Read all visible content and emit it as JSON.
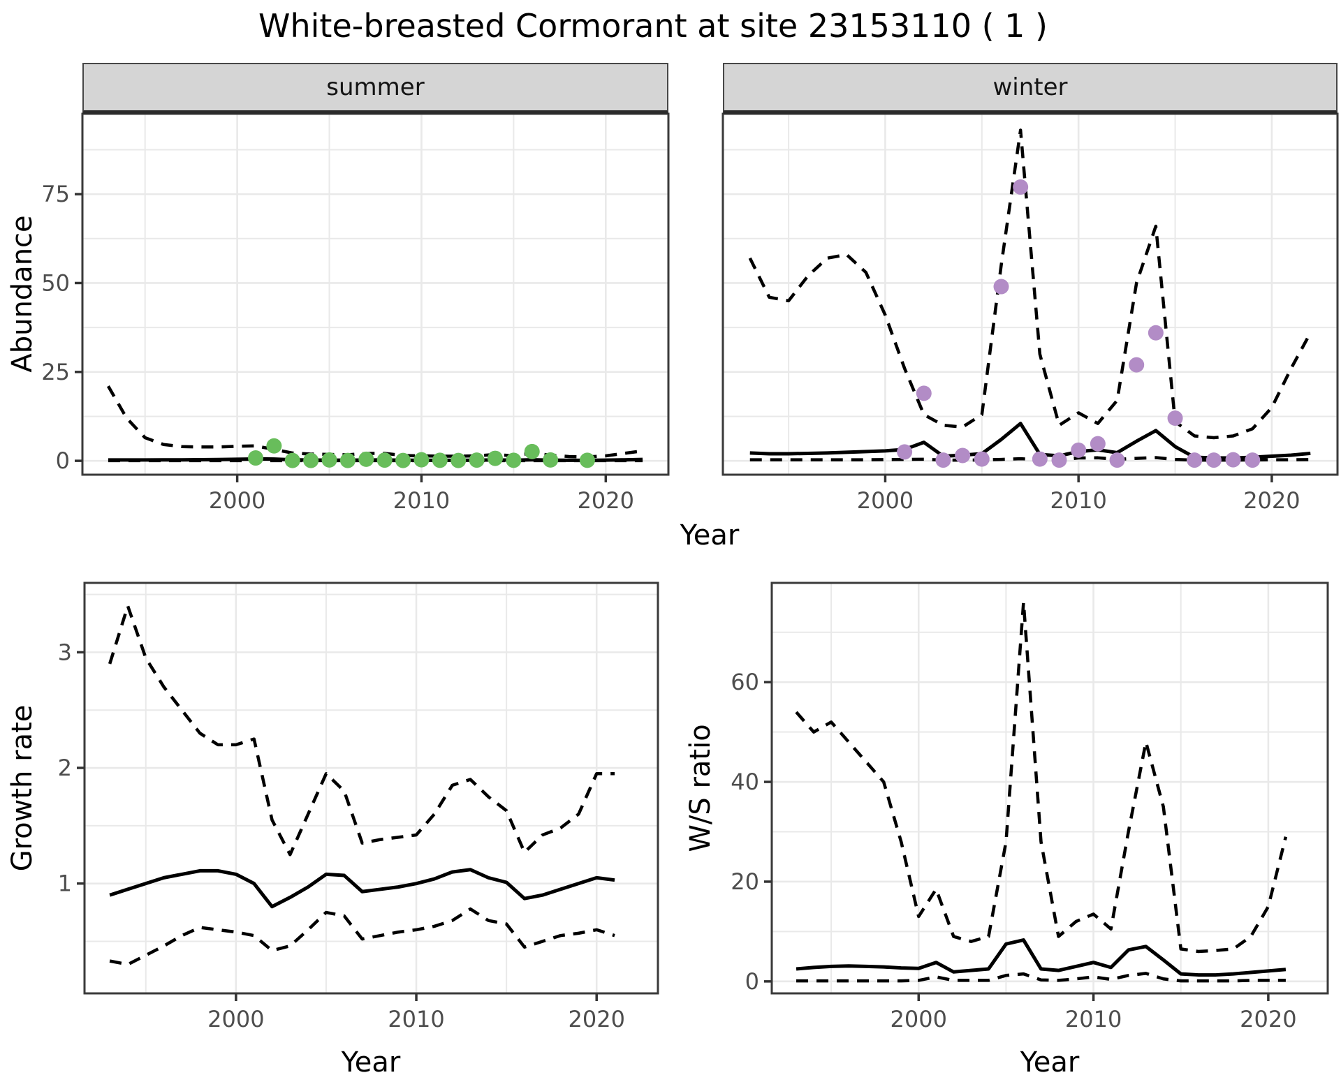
{
  "labels": {
    "title": "White-breasted Cormorant at site 23153110 ( 1 )",
    "facet_summer": "summer",
    "facet_winter": "winter",
    "y_top": "Abundance",
    "x_top": "Year",
    "y_bottom_left": "Growth rate",
    "x_bottom_left": "Year",
    "y_bottom_right": "W/S ratio",
    "x_bottom_right": "Year"
  },
  "colors": {
    "summer_point": "#68bd5b",
    "winter_point": "#b28cc6",
    "line": "#000000",
    "strip_bg": "#d5d5d5",
    "grid": "#e9e9e9",
    "tick_text": "#4d4d4d",
    "panel_border": "#3a3a3a"
  },
  "chart_data": [
    {
      "type": "line",
      "facet_label": "summer",
      "xlabel": "Year",
      "ylabel": "Abundance",
      "legend": "none",
      "grid": true,
      "x": [
        1993,
        1994,
        1995,
        1996,
        1997,
        1998,
        1999,
        2000,
        2001,
        2002,
        2003,
        2004,
        2005,
        2006,
        2007,
        2008,
        2009,
        2010,
        2011,
        2012,
        2013,
        2014,
        2015,
        2016,
        2017,
        2018,
        2019,
        2020,
        2021,
        2022
      ],
      "series": [
        {
          "name": "median_fit",
          "style": "solid",
          "values": [
            0.25,
            0.25,
            0.25,
            0.26,
            0.28,
            0.32,
            0.38,
            0.45,
            0.52,
            0.5,
            0.3,
            0.22,
            0.2,
            0.18,
            0.25,
            0.25,
            0.18,
            0.16,
            0.16,
            0.15,
            0.17,
            0.26,
            0.18,
            0.3,
            0.2,
            0.16,
            0.16,
            0.2,
            0.28,
            0.4
          ]
        },
        {
          "name": "upper_ci",
          "style": "dashed",
          "values": [
            21,
            12,
            6.5,
            4.6,
            4,
            3.9,
            3.9,
            4.1,
            4.2,
            3.2,
            2.2,
            1.9,
            1.8,
            1.7,
            2.1,
            2.1,
            1.5,
            1.4,
            1.3,
            1.3,
            1.4,
            1.8,
            1.4,
            2.2,
            1.6,
            1.2,
            1.1,
            1.4,
            2.1,
            2.8
          ]
        },
        {
          "name": "lower_ci",
          "style": "dashed",
          "values": [
            0.04,
            0.04,
            0.04,
            0.04,
            0.04,
            0.04,
            0.04,
            0.04,
            0.04,
            0.04,
            0.04,
            0.04,
            0.04,
            0.04,
            0.04,
            0.04,
            0.04,
            0.04,
            0.04,
            0.04,
            0.04,
            0.04,
            0.04,
            0.04,
            0.04,
            0.04,
            0.04,
            0.04,
            0.04,
            0.04
          ]
        }
      ],
      "points": {
        "name": "observed_counts_summer",
        "color": "#68bd5b",
        "data": [
          [
            2001,
            0.8
          ],
          [
            2002,
            4.2
          ],
          [
            2003,
            0.1
          ],
          [
            2004,
            0.1
          ],
          [
            2005,
            0.25
          ],
          [
            2006,
            0.1
          ],
          [
            2007,
            0.45
          ],
          [
            2008,
            0.2
          ],
          [
            2009,
            0.1
          ],
          [
            2010,
            0.3
          ],
          [
            2011,
            0.15
          ],
          [
            2012,
            0.1
          ],
          [
            2013,
            0.2
          ],
          [
            2014,
            0.7
          ],
          [
            2015,
            0.15
          ],
          [
            2016,
            2.6
          ],
          [
            2017,
            0.25
          ],
          [
            2019,
            0.15
          ]
        ]
      },
      "xticks": [
        2000,
        2010,
        2020
      ],
      "yticks": [
        0,
        25,
        50,
        75
      ],
      "xlim": [
        1991.6,
        2023.4
      ],
      "ylim": [
        -3.9,
        97.6
      ]
    },
    {
      "type": "line",
      "facet_label": "winter",
      "xlabel": "Year",
      "ylabel": "Abundance",
      "legend": "none",
      "grid": true,
      "x": [
        1993,
        1994,
        1995,
        1996,
        1997,
        1998,
        1999,
        2000,
        2001,
        2002,
        2003,
        2004,
        2005,
        2006,
        2007,
        2008,
        2009,
        2010,
        2011,
        2012,
        2013,
        2014,
        2015,
        2016,
        2017,
        2018,
        2019,
        2020,
        2021,
        2022
      ],
      "series": [
        {
          "name": "median_fit",
          "style": "solid",
          "values": [
            2.2,
            2.0,
            2.0,
            2.1,
            2.2,
            2.4,
            2.6,
            2.8,
            3.2,
            5.2,
            1.3,
            1.6,
            2.0,
            6.0,
            10.5,
            1.8,
            1.4,
            2.6,
            3.1,
            2.3,
            5.5,
            8.5,
            4.0,
            1.0,
            0.8,
            0.8,
            1.0,
            1.3,
            1.6,
            2.1
          ]
        },
        {
          "name": "upper_ci",
          "style": "dashed",
          "values": [
            57,
            46,
            45,
            52,
            57,
            58,
            53,
            41,
            26,
            13,
            10,
            9.5,
            13,
            55,
            93,
            30,
            10,
            13.5,
            10.5,
            17,
            50,
            66,
            11,
            7,
            6.5,
            7,
            9,
            15,
            26,
            36
          ]
        },
        {
          "name": "lower_ci",
          "style": "dashed",
          "values": [
            0.3,
            0.3,
            0.3,
            0.3,
            0.3,
            0.3,
            0.3,
            0.35,
            0.4,
            0.45,
            0.2,
            0.2,
            0.25,
            0.4,
            0.6,
            0.3,
            0.25,
            0.8,
            0.85,
            0.4,
            0.7,
            0.9,
            0.4,
            0.2,
            0.2,
            0.2,
            0.25,
            0.3,
            0.3,
            0.35
          ]
        }
      ],
      "points": {
        "name": "observed_counts_winter",
        "color": "#b28cc6",
        "data": [
          [
            2001,
            2.5
          ],
          [
            2002,
            19
          ],
          [
            2003,
            0.2
          ],
          [
            2004,
            1.5
          ],
          [
            2005,
            0.5
          ],
          [
            2006,
            49
          ],
          [
            2007,
            77
          ],
          [
            2008,
            0.5
          ],
          [
            2009,
            0.2
          ],
          [
            2010,
            3
          ],
          [
            2011,
            4.8
          ],
          [
            2012,
            0.2
          ],
          [
            2013,
            27
          ],
          [
            2014,
            36
          ],
          [
            2015,
            12
          ],
          [
            2016,
            0.2
          ],
          [
            2017,
            0.2
          ],
          [
            2018,
            0.3
          ],
          [
            2019,
            0.2
          ]
        ]
      },
      "xticks": [
        2000,
        2010,
        2020
      ],
      "yticks": [
        0,
        25,
        50,
        75
      ],
      "xlim": [
        1991.6,
        2023.4
      ],
      "ylim": [
        -3.9,
        97.6
      ]
    },
    {
      "type": "line",
      "facet_label": "",
      "xlabel": "Year",
      "ylabel": "Growth rate",
      "legend": "none",
      "grid": true,
      "x": [
        1993,
        1994,
        1995,
        1996,
        1997,
        1998,
        1999,
        2000,
        2001,
        2002,
        2003,
        2004,
        2005,
        2006,
        2007,
        2008,
        2009,
        2010,
        2011,
        2012,
        2013,
        2014,
        2015,
        2016,
        2017,
        2018,
        2019,
        2020,
        2021
      ],
      "series": [
        {
          "name": "median_fit",
          "style": "solid",
          "values": [
            0.9,
            0.95,
            1.0,
            1.05,
            1.08,
            1.11,
            1.11,
            1.08,
            1.0,
            0.8,
            0.88,
            0.97,
            1.08,
            1.07,
            0.93,
            0.95,
            0.97,
            1.0,
            1.04,
            1.1,
            1.12,
            1.05,
            1.01,
            0.87,
            0.9,
            0.95,
            1.0,
            1.05,
            1.03
          ]
        },
        {
          "name": "upper_ci",
          "style": "dashed",
          "values": [
            2.9,
            3.4,
            2.95,
            2.7,
            2.5,
            2.3,
            2.2,
            2.2,
            2.25,
            1.55,
            1.25,
            1.6,
            1.95,
            1.8,
            1.35,
            1.38,
            1.4,
            1.42,
            1.6,
            1.85,
            1.9,
            1.75,
            1.63,
            1.27,
            1.42,
            1.48,
            1.6,
            1.95,
            1.95
          ]
        },
        {
          "name": "lower_ci",
          "style": "dashed",
          "values": [
            0.33,
            0.3,
            0.38,
            0.46,
            0.55,
            0.62,
            0.6,
            0.58,
            0.55,
            0.42,
            0.46,
            0.6,
            0.75,
            0.72,
            0.52,
            0.55,
            0.58,
            0.6,
            0.63,
            0.68,
            0.78,
            0.68,
            0.65,
            0.45,
            0.5,
            0.55,
            0.57,
            0.6,
            0.55
          ]
        }
      ],
      "points": {
        "name": "",
        "color": "",
        "data": []
      },
      "xticks": [
        2000,
        2010,
        2020
      ],
      "yticks": [
        1,
        2,
        3
      ],
      "xlim": [
        1991.6,
        2023.4
      ],
      "ylim": [
        0.05,
        3.6
      ]
    },
    {
      "type": "line",
      "facet_label": "",
      "xlabel": "Year",
      "ylabel": "W/S ratio",
      "legend": "none",
      "grid": true,
      "x": [
        1993,
        1994,
        1995,
        1996,
        1997,
        1998,
        1999,
        2000,
        2001,
        2002,
        2003,
        2004,
        2005,
        2006,
        2007,
        2008,
        2009,
        2010,
        2011,
        2012,
        2013,
        2014,
        2015,
        2016,
        2017,
        2018,
        2019,
        2020,
        2021
      ],
      "series": [
        {
          "name": "median_fit",
          "style": "solid",
          "values": [
            2.5,
            2.8,
            3.0,
            3.1,
            3.0,
            2.9,
            2.7,
            2.6,
            3.8,
            1.9,
            2.2,
            2.5,
            7.5,
            8.3,
            2.5,
            2.2,
            3.0,
            3.8,
            2.8,
            6.3,
            7.0,
            4.3,
            1.5,
            1.3,
            1.3,
            1.5,
            1.8,
            2.1,
            2.4
          ]
        },
        {
          "name": "upper_ci",
          "style": "dashed",
          "values": [
            54,
            50,
            52,
            48,
            44,
            40,
            28,
            13,
            18.5,
            9,
            8,
            9,
            28,
            76,
            28,
            9,
            12,
            13.5,
            10.5,
            30,
            48,
            35,
            6.5,
            6,
            6.2,
            6.5,
            9,
            15,
            29
          ]
        },
        {
          "name": "lower_ci",
          "style": "dashed",
          "values": [
            0.1,
            0.1,
            0.1,
            0.1,
            0.1,
            0.1,
            0.1,
            0.2,
            0.9,
            0.2,
            0.2,
            0.2,
            1.2,
            1.5,
            0.3,
            0.2,
            0.5,
            0.9,
            0.4,
            1.2,
            1.6,
            0.5,
            0.1,
            0.1,
            0.1,
            0.1,
            0.2,
            0.2,
            0.2
          ]
        }
      ],
      "points": {
        "name": "",
        "color": "",
        "data": []
      },
      "xticks": [
        2000,
        2010,
        2020
      ],
      "yticks": [
        0,
        20,
        40,
        60
      ],
      "xlim": [
        1991.6,
        2023.4
      ],
      "ylim": [
        -2.4,
        79.9
      ]
    }
  ]
}
